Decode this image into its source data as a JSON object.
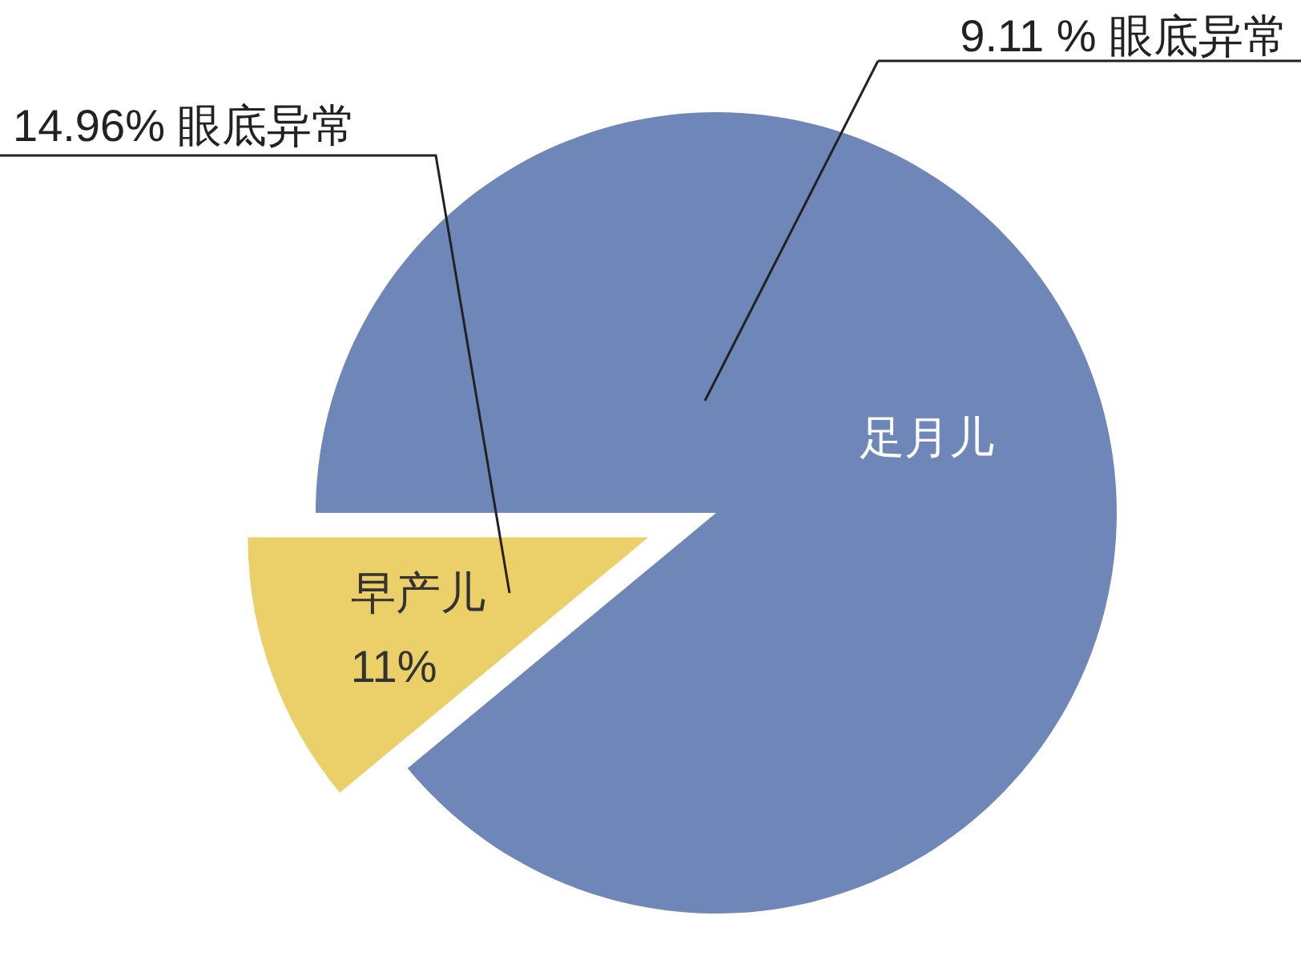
{
  "chart_data": {
    "type": "pie",
    "categories": [
      "足月儿",
      "早产儿"
    ],
    "values": [
      89,
      11
    ],
    "colors": [
      "#6f86b8",
      "#ebcf68"
    ],
    "value_labels": [
      null,
      "11%"
    ],
    "annotations": [
      "9.11 % 眼底异常",
      "14.96% 眼底异常"
    ]
  }
}
